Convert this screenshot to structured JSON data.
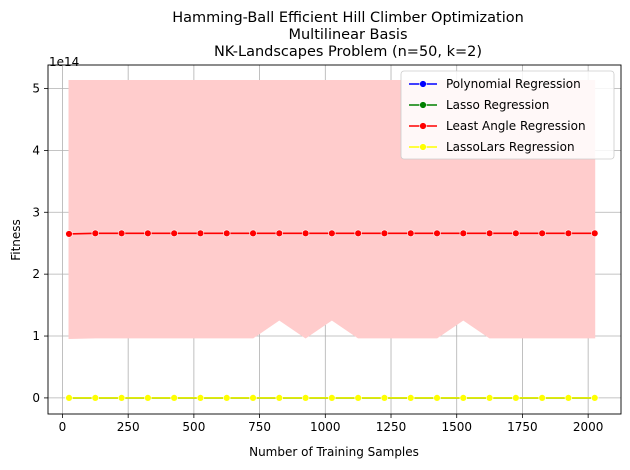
{
  "chart_data": {
    "type": "line",
    "title_lines": [
      "Hamming-Ball Efficient Hill Climber Optimization",
      "Multilinear Basis",
      "NK-Landscapes Problem (n=50, k=2)"
    ],
    "xlabel": "Number of Training Samples",
    "ylabel": "Fitness",
    "y_offset_label": "1e14",
    "xlim": [
      -55,
      2125
    ],
    "ylim": [
      -0.26,
      5.38
    ],
    "xticks": [
      0,
      250,
      500,
      750,
      1000,
      1250,
      1500,
      1750,
      2000
    ],
    "yticks": [
      0,
      1,
      2,
      3,
      4,
      5
    ],
    "grid": true,
    "legend_position": "upper right",
    "x": [
      25,
      125,
      225,
      325,
      425,
      525,
      625,
      725,
      825,
      925,
      1025,
      1125,
      1225,
      1325,
      1425,
      1525,
      1625,
      1725,
      1825,
      1925,
      2025
    ],
    "series": [
      {
        "name": "Polynomial Regression",
        "color": "#0000ff",
        "values": [
          0,
          0,
          0,
          0,
          0,
          0,
          0,
          0,
          0,
          0,
          0,
          0,
          0,
          0,
          0,
          0,
          0,
          0,
          0,
          0,
          0
        ]
      },
      {
        "name": "Lasso Regression",
        "color": "#008000",
        "values": [
          0,
          0,
          0,
          0,
          0,
          0,
          0,
          0,
          0,
          0,
          0,
          0,
          0,
          0,
          0,
          0,
          0,
          0,
          0,
          0,
          0
        ]
      },
      {
        "name": "Least Angle Regression",
        "color": "#ff0000",
        "values": [
          2.65,
          2.66,
          2.66,
          2.66,
          2.66,
          2.66,
          2.66,
          2.66,
          2.66,
          2.66,
          2.66,
          2.66,
          2.66,
          2.66,
          2.66,
          2.66,
          2.66,
          2.66,
          2.66,
          2.66,
          2.66
        ],
        "band_lower": [
          0.96,
          0.97,
          0.97,
          0.97,
          0.97,
          0.97,
          0.97,
          0.97,
          1.26,
          0.97,
          1.26,
          0.97,
          0.97,
          0.97,
          0.97,
          1.26,
          0.97,
          0.97,
          0.97,
          0.97,
          0.97
        ],
        "band_upper": [
          5.13,
          5.13,
          5.13,
          5.13,
          5.13,
          5.13,
          5.13,
          5.13,
          5.13,
          5.13,
          5.13,
          5.13,
          5.13,
          5.13,
          5.13,
          5.13,
          5.13,
          5.13,
          5.13,
          5.13,
          5.13
        ],
        "band_color": "#ffcccc"
      },
      {
        "name": "LassoLars Regression",
        "color": "#ffff00",
        "values": [
          0,
          0,
          0,
          0,
          0,
          0,
          0,
          0,
          0,
          0,
          0,
          0,
          0,
          0,
          0,
          0,
          0,
          0,
          0,
          0,
          0
        ]
      }
    ]
  }
}
